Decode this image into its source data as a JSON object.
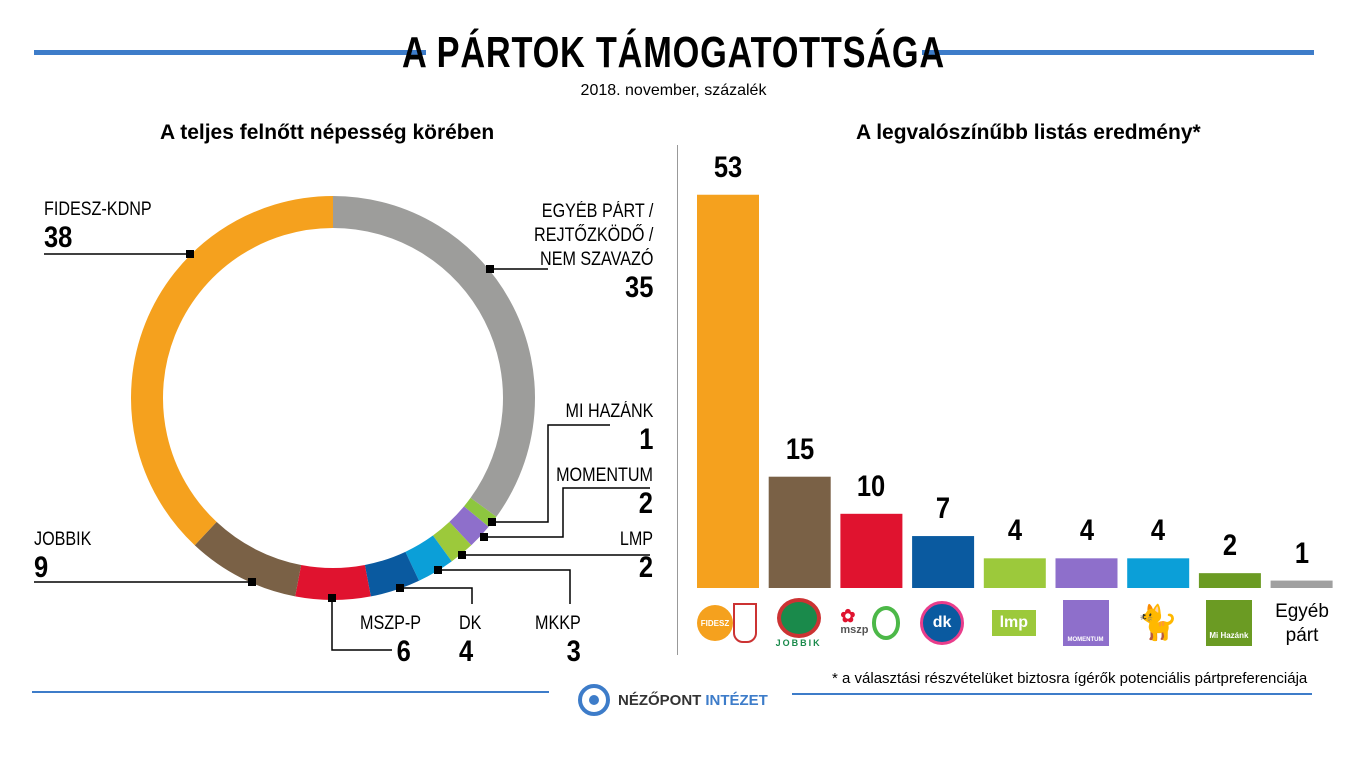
{
  "title": "A PÁRTOK TÁMOGATOTTSÁGA",
  "subtitle": "2018. november, százalék",
  "chart_data": [
    {
      "type": "pie",
      "donut": true,
      "title": "A teljes felnőtt népesség körében",
      "slices": [
        {
          "label": "EGYÉB PÁRT / REJTŐZKÖDŐ / NEM SZAVAZÓ",
          "value": 35,
          "color": "#9d9d9b"
        },
        {
          "label": "MI HAZÁNK",
          "value": 1,
          "color": "#8dc63f"
        },
        {
          "label": "MOMENTUM",
          "value": 2,
          "color": "#8e6fcb"
        },
        {
          "label": "LMP",
          "value": 2,
          "color": "#9cc93b"
        },
        {
          "label": "MKKP",
          "value": 3,
          "color": "#0b9fd8"
        },
        {
          "label": "DK",
          "value": 4,
          "color": "#0a5aa0"
        },
        {
          "label": "MSZP-P",
          "value": 6,
          "color": "#e0132f"
        },
        {
          "label": "JOBBIK",
          "value": 9,
          "color": "#7a6146"
        },
        {
          "label": "FIDESZ-KDNP",
          "value": 38,
          "color": "#f5a11e"
        }
      ]
    },
    {
      "type": "bar",
      "title": "A legvalószínűbb listás eredmény*",
      "categories": [
        "Fidesz-KDNP",
        "Jobbik",
        "MSZP-Párbeszéd",
        "DK",
        "LMP",
        "Momentum",
        "MKKP",
        "Mi Hazánk",
        "Egyéb párt"
      ],
      "values": [
        53,
        15,
        10,
        7,
        4,
        4,
        4,
        2,
        1
      ],
      "colors": [
        "#f5a11e",
        "#7a6146",
        "#e0132f",
        "#0a5aa0",
        "#9cc93b",
        "#8e6fcb",
        "#0b9fd8",
        "#6b9b23",
        "#a0a0a0"
      ],
      "logos": [
        "FIDESZ",
        "JOBBIK",
        "mszp párbeszéd",
        "dk",
        "lmp",
        "MOMENTUM",
        "",
        "Mi Hazánk",
        ""
      ],
      "other_label_1": "Egyéb",
      "other_label_2": "párt",
      "footnote": "* a választási részvételüket biztosra ígérők potenciális pártpreferenciája"
    }
  ],
  "labels": {
    "egyeb1": "EGYÉB PÁRT /",
    "egyeb2": "REJTŐZKÖDŐ /",
    "egyeb3": "NEM SZAVAZÓ"
  },
  "footer": {
    "brand1": "NÉZŐPONT",
    "brand2": "INTÉZET"
  }
}
